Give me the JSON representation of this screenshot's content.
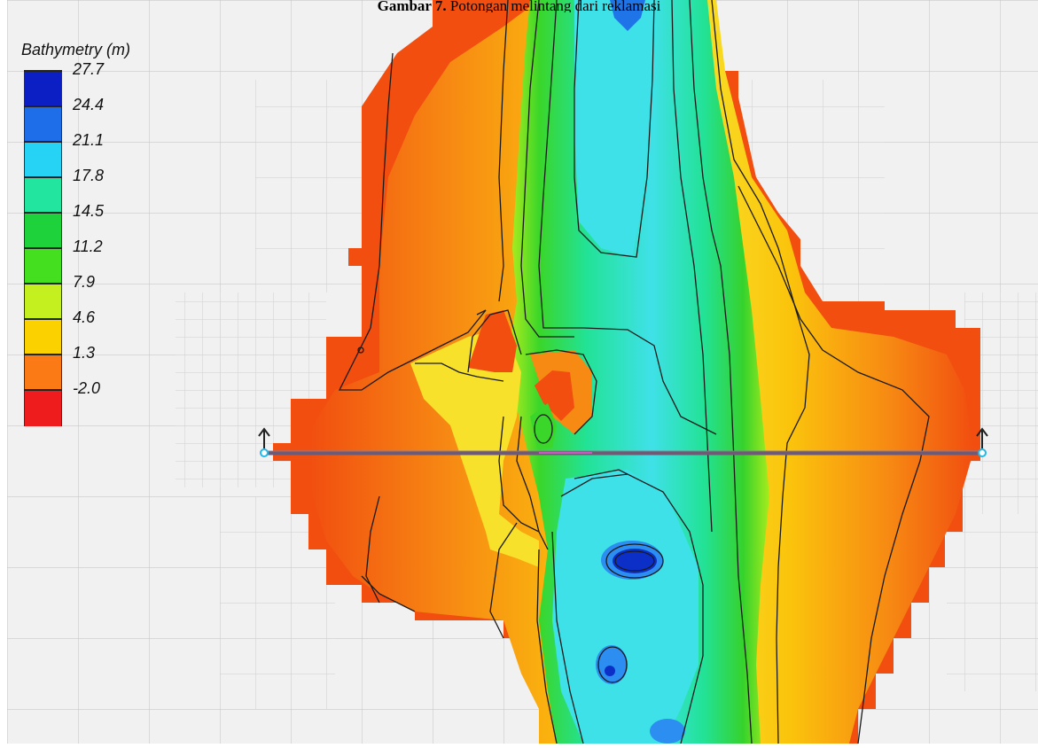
{
  "caption": {
    "label": "Gambar 7.",
    "text": " Potongan melintang dari reklamasi"
  },
  "legend": {
    "title": "Bathymetry (m)",
    "levels": [
      {
        "value": "27.7",
        "color": "#0b1fc4"
      },
      {
        "value": "24.4",
        "color": "#1d6ee8"
      },
      {
        "value": "21.1",
        "color": "#27d3f5"
      },
      {
        "value": "17.8",
        "color": "#22e6a0"
      },
      {
        "value": "14.5",
        "color": "#1ed23c"
      },
      {
        "value": "11.2",
        "color": "#44e020"
      },
      {
        "value": "7.9",
        "color": "#c4f020"
      },
      {
        "value": "4.6",
        "color": "#fbd200"
      },
      {
        "value": "1.3",
        "color": "#fb7a16"
      },
      {
        "value": "-2.0",
        "color": "#ee1c1c"
      }
    ]
  },
  "colors": {
    "background": "#f1f1f1",
    "grid": "#cfcfcf",
    "land": "#f14e10",
    "contour": "#1a1a1a",
    "section_line": "#6f5a75"
  }
}
